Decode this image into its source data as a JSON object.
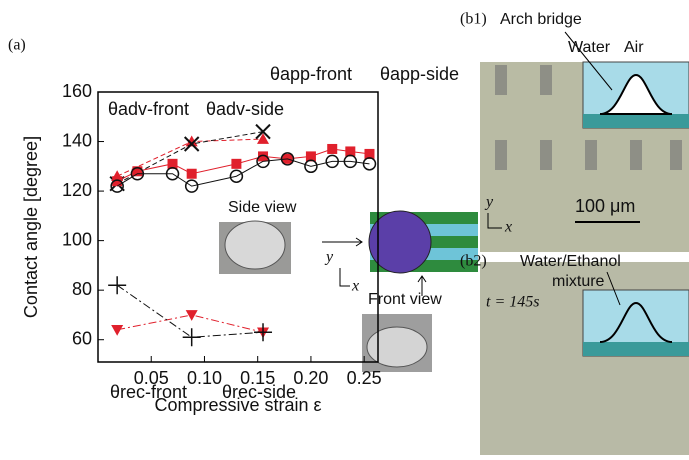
{
  "chart_data": {
    "type": "line",
    "panel_label": "(a)",
    "xlabel": "Compressive strain ε",
    "ylabel": "Contact angle [degree]",
    "xlim": [
      0,
      0.263
    ],
    "ylim": [
      51,
      160
    ],
    "xticks": [
      {
        "value": 0.05,
        "label": "0.05"
      },
      {
        "value": 0.1,
        "label": "0.10"
      },
      {
        "value": 0.15,
        "label": "0.15"
      },
      {
        "value": 0.2,
        "label": "0.20"
      },
      {
        "value": 0.25,
        "label": "0.25"
      }
    ],
    "yticks": [
      60,
      80,
      100,
      120,
      140,
      160
    ],
    "series": [
      {
        "name": "θadv-front",
        "color": "#e0202c",
        "marker": "triangle",
        "dash": "5,3",
        "x": [
          0.018,
          0.088,
          0.155
        ],
        "values": [
          126,
          140,
          141
        ]
      },
      {
        "name": "θadv-side",
        "color": "#111111",
        "marker": "cross",
        "dash": "5,3",
        "x": [
          0.018,
          0.088,
          0.155
        ],
        "values": [
          123,
          139,
          144
        ]
      },
      {
        "name": "θapp-front",
        "color": "#e0202c",
        "marker": "square",
        "dash": "",
        "x": [
          0.018,
          0.037,
          0.07,
          0.088,
          0.13,
          0.155,
          0.178,
          0.2,
          0.22,
          0.237,
          0.255
        ],
        "values": [
          124,
          128,
          131,
          127,
          131,
          134,
          133,
          134,
          137,
          136,
          135
        ]
      },
      {
        "name": "θapp-side",
        "color": "#111111",
        "marker": "circle",
        "dash": "",
        "x": [
          0.018,
          0.037,
          0.07,
          0.088,
          0.13,
          0.155,
          0.178,
          0.2,
          0.22,
          0.237,
          0.255
        ],
        "values": [
          122,
          127,
          127,
          122,
          126,
          132,
          133,
          130,
          132,
          132,
          131
        ]
      },
      {
        "name": "θrec-front",
        "color": "#e0202c",
        "marker": "down-triangle",
        "dash": "8,3,2,3",
        "x": [
          0.018,
          0.088,
          0.155
        ],
        "values": [
          64,
          70,
          63
        ]
      },
      {
        "name": "θrec-side",
        "color": "#111111",
        "marker": "plus",
        "dash": "8,3,2,3",
        "x": [
          0.018,
          0.088,
          0.155
        ],
        "values": [
          82,
          61,
          63
        ]
      }
    ],
    "insets": {
      "side_view": "Side view",
      "front_view": "Front view",
      "axis_y": "y",
      "axis_x": "x"
    }
  },
  "figure": {
    "b1": {
      "label": "(b1)",
      "arch": "Arch bridge",
      "water": "Water",
      "air": "Air",
      "scale": "100 μm",
      "axis_y": "y",
      "axis_x": "x"
    },
    "b2": {
      "label": "(b2)",
      "mixture": [
        "Water/Ethanol",
        "mixture"
      ],
      "time": "t = 145s"
    }
  }
}
